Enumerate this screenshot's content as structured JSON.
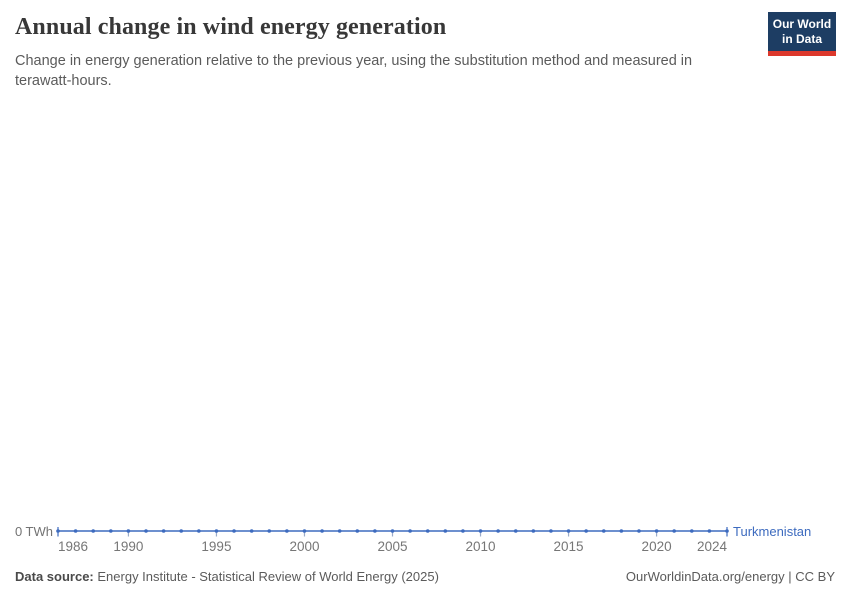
{
  "header": {
    "title": "Annual change in wind energy generation",
    "subtitle": "Change in energy generation relative to the previous year, using the substitution method and measured in terawatt-hours.",
    "logo": {
      "line1": "Our World",
      "line2": "in Data",
      "bg_color": "#1d3d63",
      "accent_color": "#dc382c"
    }
  },
  "chart": {
    "y_axis_label": "0 TWh",
    "entity_label": "Turkmenistan",
    "line_color": "#3d6bbf",
    "tick_color": "#9aabc9"
  },
  "chart_data": {
    "type": "line",
    "title": "Annual change in wind energy generation",
    "subtitle": "Change in energy generation relative to the previous year, using the substitution method and measured in terawatt-hours.",
    "unit": "TWh",
    "x": [
      1986,
      1987,
      1988,
      1989,
      1990,
      1991,
      1992,
      1993,
      1994,
      1995,
      1996,
      1997,
      1998,
      1999,
      2000,
      2001,
      2002,
      2003,
      2004,
      2005,
      2006,
      2007,
      2008,
      2009,
      2010,
      2011,
      2012,
      2013,
      2014,
      2015,
      2016,
      2017,
      2018,
      2019,
      2020,
      2021,
      2022,
      2023,
      2024
    ],
    "series": [
      {
        "name": "Turkmenistan",
        "color": "#3d6bbf",
        "values": [
          0,
          0,
          0,
          0,
          0,
          0,
          0,
          0,
          0,
          0,
          0,
          0,
          0,
          0,
          0,
          0,
          0,
          0,
          0,
          0,
          0,
          0,
          0,
          0,
          0,
          0,
          0,
          0,
          0,
          0,
          0,
          0,
          0,
          0,
          0,
          0,
          0,
          0,
          0
        ]
      }
    ],
    "x_ticks": [
      1986,
      1990,
      1995,
      2000,
      2005,
      2010,
      2015,
      2020,
      2024
    ],
    "y_ticks": [
      "0 TWh"
    ],
    "ylim": [
      0,
      0
    ],
    "grid": false,
    "legend_position": "right-of-line",
    "marker": "circle"
  },
  "footer": {
    "data_source_label": "Data source:",
    "data_source_value": "Energy Institute - Statistical Review of World Energy (2025)",
    "site_link": "OurWorldinData.org/energy",
    "separator": " | ",
    "license": "CC BY"
  }
}
